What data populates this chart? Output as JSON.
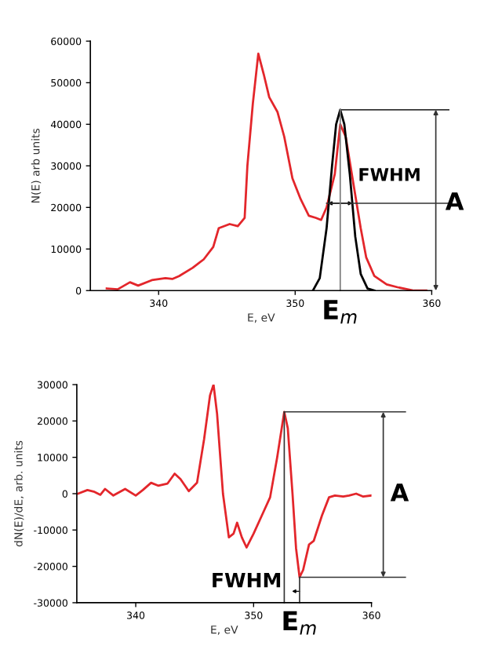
{
  "chart_data": [
    {
      "type": "line",
      "xlabel": "E, eV",
      "ylabel": "N(E) arb units",
      "xlim": [
        335,
        360
      ],
      "ylim": [
        0,
        60000
      ],
      "xticks": [
        340,
        350,
        360
      ],
      "yticks": [
        0,
        10000,
        20000,
        30000,
        40000,
        50000,
        60000
      ],
      "grid": false,
      "ref_lines": [
        {
          "axis": "y",
          "value": 43500,
          "color": "#333333"
        },
        {
          "axis": "y",
          "value": 21000,
          "color": "#333333"
        },
        {
          "axis": "x",
          "value": 353.3,
          "color": "#777777"
        }
      ],
      "annotations": [
        "FWHM",
        "A",
        "E$_{m}$"
      ],
      "series": [
        {
          "color": "#e3262b",
          "x": [
            336.2,
            337,
            337.9,
            338.5,
            339.5,
            340.5,
            341,
            341.5,
            342.5,
            343.3,
            344,
            344.4,
            345.2,
            345.8,
            346.3,
            346.5,
            346.9,
            347.3,
            347.7,
            348.1,
            348.7,
            349.2,
            349.8,
            350.4,
            351,
            351.5,
            351.9,
            352.3,
            352.9,
            353.3,
            353.7,
            354.2,
            354.8,
            355.2,
            355.8,
            356.7,
            357.5,
            358.7,
            359.6
          ],
          "values": [
            500,
            300,
            2000,
            1200,
            2500,
            3000,
            2800,
            3500,
            5500,
            7500,
            10500,
            15000,
            16000,
            15500,
            17500,
            30000,
            45000,
            57000,
            52000,
            46500,
            43000,
            37000,
            27000,
            22000,
            18000,
            17500,
            17000,
            20000,
            28000,
            40000,
            37000,
            27000,
            15000,
            8000,
            3500,
            1500,
            800,
            0,
            0
          ]
        },
        {
          "color": "#000000",
          "x": [
            351.3,
            351.8,
            352.3,
            352.7,
            353.0,
            353.3,
            353.6,
            354.0,
            354.4,
            354.8,
            355.3,
            355.8
          ],
          "values": [
            0,
            3000,
            15000,
            30000,
            40000,
            43500,
            40000,
            28000,
            13000,
            4000,
            500,
            0
          ]
        }
      ]
    },
    {
      "type": "line",
      "xlabel": "E, eV",
      "ylabel": "dN(E)/dE, arb. units",
      "xlim": [
        335,
        360
      ],
      "ylim": [
        -30000,
        30000
      ],
      "xticks": [
        340,
        350,
        360
      ],
      "yticks": [
        -30000,
        -20000,
        -10000,
        0,
        10000,
        20000,
        30000
      ],
      "grid": false,
      "ref_lines": [
        {
          "axis": "y",
          "value": 22500,
          "color": "#333333"
        },
        {
          "axis": "y",
          "value": -23000,
          "color": "#333333"
        },
        {
          "axis": "x",
          "value": 352.6,
          "color": "#333333"
        },
        {
          "axis": "x",
          "value": 353.9,
          "color": "#333333"
        }
      ],
      "annotations": [
        "FWHM",
        "A",
        "E$_{m}$"
      ],
      "series": [
        {
          "color": "#e3262b",
          "x": [
            335.1,
            335.9,
            336.5,
            337,
            337.4,
            338.1,
            339.1,
            340,
            340.6,
            341.3,
            341.9,
            342.7,
            343.3,
            343.8,
            344.5,
            345.2,
            345.8,
            346.3,
            346.6,
            346.9,
            347.4,
            347.9,
            348.3,
            348.6,
            349,
            349.4,
            350,
            350.7,
            351.4,
            352,
            352.6,
            352.9,
            353.3,
            353.6,
            353.9,
            354.2,
            354.7,
            355.1,
            355.8,
            356.4,
            356.9,
            357.6,
            358.1,
            358.7,
            359.3,
            360
          ],
          "values": [
            0,
            1000,
            500,
            -300,
            1300,
            -500,
            1300,
            -500,
            1000,
            3000,
            2200,
            2800,
            5500,
            4000,
            700,
            3000,
            15000,
            27000,
            30000,
            22000,
            0,
            -12000,
            -11000,
            -8000,
            -12000,
            -14800,
            -11000,
            -6000,
            -1000,
            10000,
            22500,
            18000,
            0,
            -15000,
            -23000,
            -21000,
            -14000,
            -13000,
            -6000,
            -1000,
            -500,
            -800,
            -500,
            0,
            -800,
            -500
          ]
        }
      ]
    }
  ]
}
